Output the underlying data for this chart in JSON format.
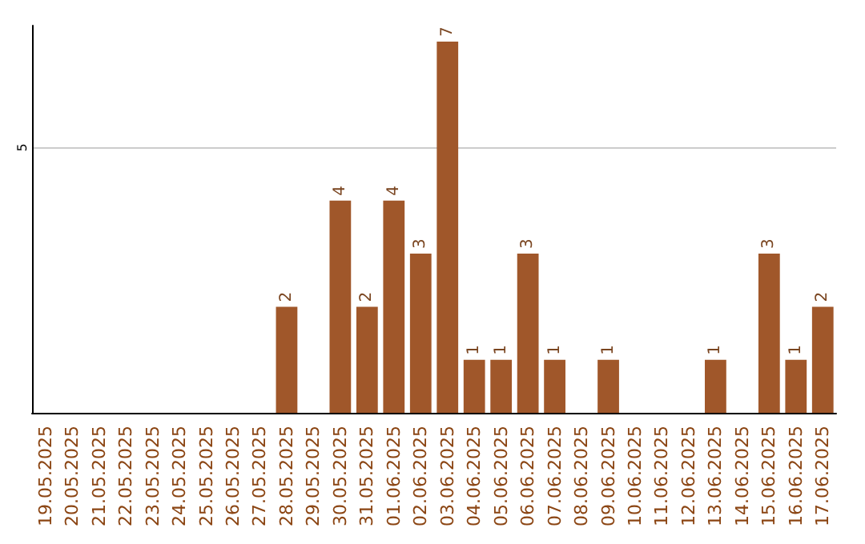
{
  "chart_data": {
    "type": "bar",
    "categories": [
      "19.05.2025",
      "20.05.2025",
      "21.05.2025",
      "22.05.2025",
      "23.05.2025",
      "24.05.2025",
      "25.05.2025",
      "26.05.2025",
      "27.05.2025",
      "28.05.2025",
      "29.05.2025",
      "30.05.2025",
      "31.05.2025",
      "01.06.2025",
      "02.06.2025",
      "03.06.2025",
      "04.06.2025",
      "05.06.2025",
      "06.06.2025",
      "07.06.2025",
      "08.06.2025",
      "09.06.2025",
      "10.06.2025",
      "11.06.2025",
      "12.06.2025",
      "13.06.2025",
      "14.06.2025",
      "15.06.2025",
      "16.06.2025",
      "17.06.2025"
    ],
    "values": [
      0,
      0,
      0,
      0,
      0,
      0,
      0,
      0,
      0,
      2,
      0,
      4,
      2,
      4,
      3,
      7,
      1,
      1,
      3,
      1,
      0,
      1,
      0,
      0,
      0,
      1,
      0,
      3,
      1,
      2
    ],
    "value_labels": [
      null,
      null,
      null,
      null,
      null,
      null,
      null,
      null,
      null,
      "2",
      null,
      "4",
      "2",
      "4",
      "3",
      "7",
      "1",
      "1",
      "3",
      "1",
      null,
      "1",
      null,
      null,
      null,
      "1",
      null,
      "3",
      "1",
      "2"
    ],
    "color": "#a0572a",
    "ylim": [
      0,
      7.3
    ],
    "yticks": [
      5
    ],
    "grid": "y"
  }
}
